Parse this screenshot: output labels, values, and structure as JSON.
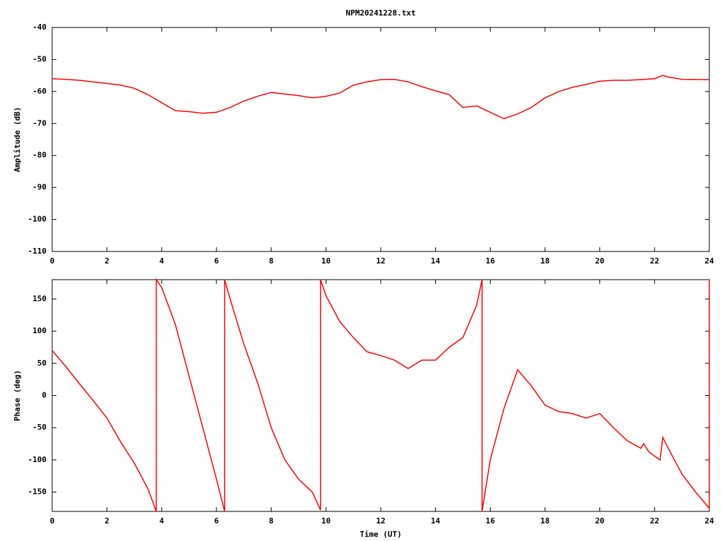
{
  "chart_data": [
    {
      "type": "line",
      "title": "NPM20241228.txt",
      "ylabel": "Amplitude (dB)",
      "color": "#ff0000",
      "x": [
        0,
        0.5,
        1,
        1.5,
        2,
        2.5,
        3,
        3.5,
        4,
        4.5,
        5,
        5.5,
        6,
        6.5,
        7,
        7.5,
        8,
        8.5,
        9,
        9.5,
        10,
        10.5,
        11,
        11.5,
        12,
        12.5,
        13,
        13.5,
        14,
        14.5,
        15,
        15.5,
        16,
        16.5,
        17,
        17.5,
        18,
        18.5,
        19,
        19.5,
        20,
        20.5,
        21,
        21.5,
        22,
        22.3,
        22.5,
        23,
        24
      ],
      "values": [
        -56,
        -56.2,
        -56.5,
        -57,
        -57.5,
        -58,
        -59,
        -61,
        -63.5,
        -66,
        -66.3,
        -66.8,
        -66.5,
        -65,
        -63,
        -61.5,
        -60.3,
        -60.8,
        -61.3,
        -62,
        -61.5,
        -60.5,
        -58,
        -57,
        -56.3,
        -56.2,
        -57,
        -58.5,
        -59.8,
        -61,
        -65,
        -64.5,
        -66.5,
        -68.5,
        -67,
        -65,
        -62,
        -60,
        -58.7,
        -57.8,
        -56.8,
        -56.5,
        -56.5,
        -56.3,
        -56,
        -55,
        -55.5,
        -56.2,
        -56.3
      ],
      "xlim": [
        0,
        24
      ],
      "xticks": [
        0,
        2,
        4,
        6,
        8,
        10,
        12,
        14,
        16,
        18,
        20,
        22,
        24
      ],
      "ylim": [
        -110,
        -40
      ],
      "yticks": [
        -110,
        -100,
        -90,
        -80,
        -70,
        -60,
        -50,
        -40
      ]
    },
    {
      "type": "line",
      "ylabel": "Phase (deg)",
      "xlabel": "Time (UT)",
      "color": "#ff0000",
      "x": [
        0,
        0.5,
        1,
        1.5,
        2,
        2.5,
        3,
        3.5,
        3.8,
        3.8,
        4,
        4.5,
        5,
        5.5,
        6,
        6.3,
        6.3,
        6.5,
        7,
        7.5,
        8,
        8.5,
        9,
        9.5,
        9.8,
        9.8,
        10,
        10.5,
        11,
        11.5,
        12,
        12.5,
        13,
        13.5,
        14,
        14.5,
        15,
        15.5,
        15.7,
        15.7,
        16,
        16.5,
        17,
        17.5,
        18,
        18.5,
        19,
        19.5,
        20,
        20.5,
        21,
        21.5,
        21.6,
        21.8,
        22.2,
        22.3,
        22.5,
        23,
        23.5,
        24,
        24
      ],
      "values": [
        70,
        45,
        18,
        -8,
        -35,
        -72,
        -105,
        -145,
        -180,
        180,
        168,
        110,
        30,
        -50,
        -130,
        -180,
        180,
        150,
        80,
        20,
        -50,
        -100,
        -130,
        -150,
        -178,
        180,
        155,
        115,
        90,
        68,
        62,
        55,
        42,
        55,
        55,
        75,
        90,
        140,
        180,
        -180,
        -100,
        -20,
        40,
        15,
        -15,
        -25,
        -28,
        -35,
        -28,
        -50,
        -70,
        -82,
        -75,
        -88,
        -100,
        -65,
        -82,
        -122,
        -150,
        -175,
        180
      ],
      "xlim": [
        0,
        24
      ],
      "xticks": [
        0,
        2,
        4,
        6,
        8,
        10,
        12,
        14,
        16,
        18,
        20,
        22,
        24
      ],
      "ylim": [
        -180,
        180
      ],
      "yticks": [
        -150,
        -100,
        -50,
        0,
        50,
        100,
        150
      ]
    }
  ]
}
